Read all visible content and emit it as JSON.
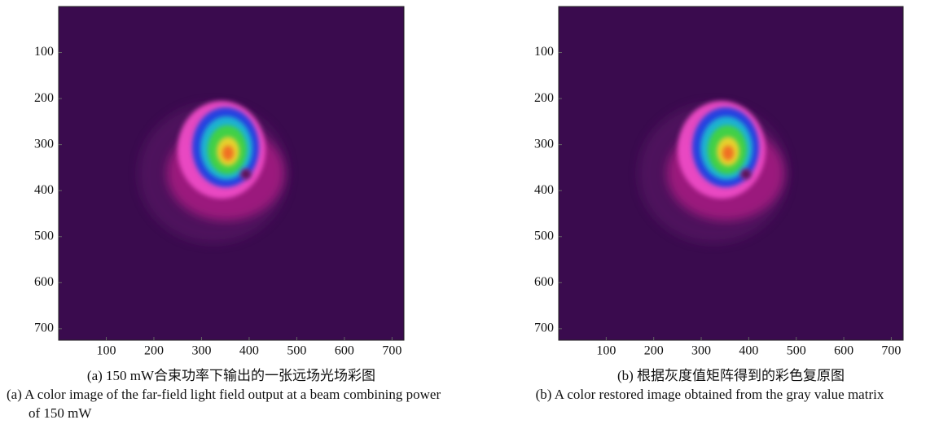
{
  "panels": [
    {
      "xlim": [
        0,
        725
      ],
      "ylim": [
        725,
        0
      ],
      "xticks": [
        100,
        200,
        300,
        400,
        500,
        600,
        700
      ],
      "yticks": [
        100,
        200,
        300,
        400,
        500,
        600,
        700
      ],
      "caption_cn": "(a) 150 mW合束功率下输出的一张远场光场彩图",
      "caption_en": "(a) A color image of the far-field light field output at a beam combining power of 150 mW"
    },
    {
      "xlim": [
        0,
        725
      ],
      "ylim": [
        725,
        0
      ],
      "xticks": [
        100,
        200,
        300,
        400,
        500,
        600,
        700
      ],
      "yticks": [
        100,
        200,
        300,
        400,
        500,
        600,
        700
      ],
      "caption_cn": "(b) 根据灰度值矩阵得到的彩色复原图",
      "caption_en": "(b) A color restored image obtained from the gray value matrix"
    }
  ]
}
